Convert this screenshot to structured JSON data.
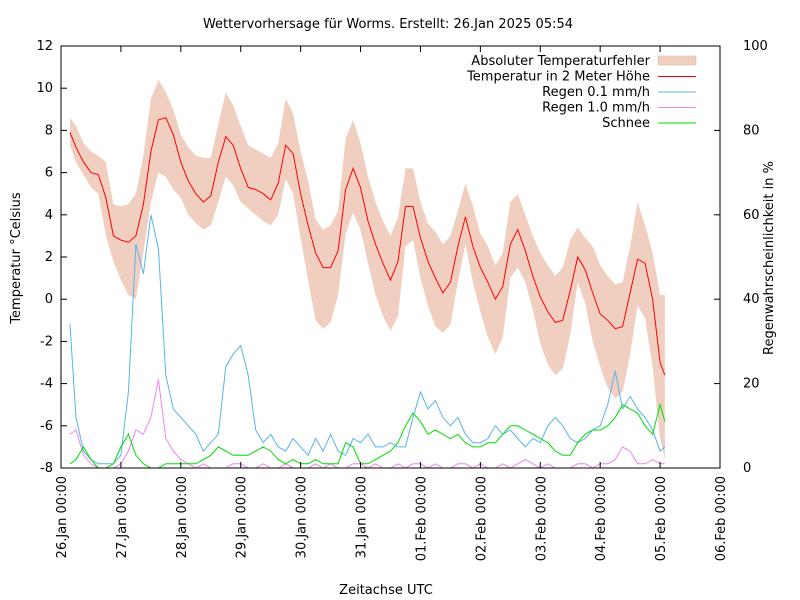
{
  "chart_data": {
    "type": "line",
    "title": "Wettervorhersage für Worms. Erstellt: 26.Jan 2025 05:54",
    "xlabel": "Zeitachse UTC",
    "ylabel": "Temperatur °Celsius",
    "y2label": "Regenwahrscheinlichkeit in %",
    "ylim": [
      -8,
      12
    ],
    "y2lim": [
      0,
      100
    ],
    "xlim_days": [
      0,
      11
    ],
    "y_ticks": [
      -8,
      -6,
      -4,
      -2,
      0,
      2,
      4,
      6,
      8,
      10,
      12
    ],
    "y2_ticks": [
      0,
      20,
      40,
      60,
      80,
      100
    ],
    "x_tick_labels": [
      "26.Jan 00:00",
      "27.Jan 00:00",
      "28.Jan 00:00",
      "29.Jan 00:00",
      "30.Jan 00:00",
      "31.Jan 00:00",
      "01.Feb 00:00",
      "02.Feb 00:00",
      "03.Feb 00:00",
      "04.Feb 00:00",
      "05.Feb 00:00",
      "06.Feb 00:00"
    ],
    "grid": false,
    "legend_position": "top-right",
    "x_unit": "days since 26.Jan 00:00 UTC",
    "x": [
      0.15,
      0.25,
      0.375,
      0.5,
      0.625,
      0.75,
      0.875,
      1.0,
      1.125,
      1.25,
      1.375,
      1.5,
      1.625,
      1.75,
      1.875,
      2.0,
      2.125,
      2.25,
      2.375,
      2.5,
      2.625,
      2.75,
      2.875,
      3.0,
      3.125,
      3.25,
      3.375,
      3.5,
      3.625,
      3.75,
      3.875,
      4.0,
      4.125,
      4.25,
      4.375,
      4.5,
      4.625,
      4.75,
      4.875,
      5.0,
      5.125,
      5.25,
      5.375,
      5.5,
      5.625,
      5.75,
      5.875,
      6.0,
      6.125,
      6.25,
      6.375,
      6.5,
      6.625,
      6.75,
      6.875,
      7.0,
      7.125,
      7.25,
      7.375,
      7.5,
      7.625,
      7.75,
      7.875,
      8.0,
      8.125,
      8.25,
      8.375,
      8.5,
      8.625,
      8.75,
      8.875,
      9.0,
      9.125,
      9.25,
      9.375,
      9.5,
      9.625,
      9.75,
      9.875,
      10.0,
      10.08
    ],
    "series": [
      {
        "name": "Temperatur in 2 Meter Höhe",
        "axis": "y",
        "color": "#ff0000",
        "values": [
          7.9,
          7.2,
          6.5,
          6.0,
          5.9,
          4.8,
          3.0,
          2.8,
          2.7,
          3.0,
          4.5,
          7.0,
          8.5,
          8.6,
          7.8,
          6.5,
          5.6,
          5.0,
          4.6,
          4.9,
          6.5,
          7.7,
          7.3,
          6.2,
          5.3,
          5.2,
          5.0,
          4.7,
          5.5,
          7.3,
          6.9,
          5.0,
          3.5,
          2.2,
          1.5,
          1.5,
          2.3,
          5.2,
          6.2,
          5.3,
          3.7,
          2.6,
          1.7,
          0.9,
          1.8,
          4.4,
          4.4,
          2.9,
          1.8,
          1.0,
          0.3,
          0.8,
          2.5,
          3.9,
          2.5,
          1.5,
          0.8,
          0.0,
          0.6,
          2.6,
          3.3,
          2.3,
          1.1,
          0.1,
          -0.6,
          -1.1,
          -1.0,
          0.4,
          2.0,
          1.4,
          0.3,
          -0.7,
          -1.0,
          -1.4,
          -1.3,
          0.3,
          1.9,
          1.7,
          0.0,
          -3.0,
          -3.6
        ]
      },
      {
        "name": "Absoluter Temperaturfehler",
        "axis": "y",
        "color": "#f0cfc0",
        "type": "area",
        "upper": [
          8.6,
          8.2,
          7.4,
          7.0,
          6.8,
          6.5,
          4.5,
          4.4,
          4.5,
          5.0,
          6.8,
          9.5,
          10.4,
          9.8,
          9.0,
          7.8,
          7.2,
          6.8,
          6.7,
          6.7,
          8.3,
          9.8,
          9.2,
          8.2,
          7.3,
          7.1,
          6.9,
          6.7,
          7.4,
          9.5,
          8.8,
          7.0,
          5.6,
          3.8,
          3.3,
          3.5,
          4.2,
          7.6,
          8.5,
          7.4,
          5.8,
          4.6,
          3.7,
          3.0,
          3.9,
          6.2,
          6.2,
          4.6,
          3.6,
          3.2,
          2.6,
          3.0,
          4.2,
          5.5,
          4.4,
          3.1,
          2.5,
          1.6,
          2.2,
          4.6,
          5.0,
          4.0,
          3.0,
          2.2,
          1.6,
          1.1,
          1.5,
          2.8,
          3.4,
          2.9,
          2.5,
          1.6,
          1.1,
          0.7,
          0.8,
          2.5,
          4.6,
          3.5,
          2.2,
          0.2,
          0.2
        ],
        "lower": [
          7.3,
          6.5,
          5.9,
          5.3,
          5.0,
          3.0,
          1.8,
          0.9,
          0.2,
          0.0,
          2.2,
          4.6,
          6.0,
          5.8,
          5.2,
          4.8,
          4.0,
          3.6,
          3.3,
          3.5,
          4.6,
          5.8,
          5.4,
          4.6,
          4.3,
          4.0,
          3.7,
          3.5,
          4.0,
          5.7,
          5.0,
          2.9,
          0.9,
          -1.0,
          -1.4,
          -1.1,
          0.2,
          3.1,
          4.1,
          3.3,
          1.7,
          0.2,
          -0.8,
          -1.5,
          -0.8,
          2.5,
          2.8,
          1.0,
          -0.3,
          -1.3,
          -1.6,
          -1.2,
          0.8,
          2.6,
          0.8,
          -0.6,
          -1.8,
          -2.6,
          -1.8,
          1.0,
          1.5,
          0.8,
          -0.5,
          -2.1,
          -3.1,
          -3.6,
          -3.3,
          -1.7,
          0.8,
          -0.2,
          -2.0,
          -3.2,
          -4.2,
          -4.7,
          -4.4,
          -2.6,
          -0.3,
          -0.9,
          -3.2,
          -6.6,
          -7.6
        ]
      },
      {
        "name": "Regen 0.1 mm/h",
        "axis": "y2",
        "color": "#56b4e9",
        "values": [
          34,
          12,
          4,
          2,
          1,
          1,
          1,
          3,
          18,
          53,
          46,
          60,
          52,
          22,
          14,
          12,
          10,
          8,
          4,
          6,
          8,
          24,
          27,
          29,
          22,
          9,
          6,
          8,
          5,
          4,
          7,
          5,
          3,
          7,
          4,
          8,
          4,
          3,
          7,
          6,
          8,
          5,
          5,
          6,
          5,
          5,
          12,
          18,
          14,
          16,
          12,
          10,
          12,
          8,
          6,
          6,
          7,
          10,
          8,
          9,
          7,
          5,
          7,
          6,
          10,
          12,
          10,
          7,
          6,
          7,
          9,
          10,
          15,
          23,
          14,
          17,
          14,
          12,
          9,
          4,
          5
        ]
      },
      {
        "name": "Regen 1.0 mm/h",
        "axis": "y2",
        "color": "#ee82ee",
        "values": [
          8,
          9,
          3,
          1,
          0,
          0,
          0,
          1,
          4,
          9,
          8,
          12,
          21,
          7,
          4,
          2,
          1,
          0,
          1,
          0,
          0,
          0,
          1,
          1,
          0,
          0,
          1,
          0,
          0,
          1,
          0,
          0,
          0,
          1,
          0,
          1,
          0,
          0,
          1,
          1,
          0,
          1,
          0,
          0,
          1,
          0,
          1,
          1,
          0,
          1,
          0,
          0,
          1,
          1,
          0,
          1,
          0,
          0,
          1,
          0,
          1,
          2,
          1,
          0,
          1,
          0,
          0,
          0,
          1,
          1,
          0,
          1,
          1,
          2,
          5,
          4,
          1,
          1,
          2,
          1,
          1
        ]
      },
      {
        "name": "Schnee",
        "axis": "y2",
        "color": "#00dd00",
        "values": [
          1,
          2,
          5,
          2,
          0,
          0,
          1,
          5,
          8,
          3,
          1,
          0,
          0,
          1,
          1,
          1,
          1,
          1,
          2,
          3,
          5,
          4,
          3,
          3,
          3,
          4,
          5,
          4,
          2,
          1,
          2,
          1,
          1,
          2,
          1,
          1,
          1,
          6,
          5,
          1,
          1,
          2,
          3,
          4,
          6,
          10,
          13,
          11,
          8,
          9,
          8,
          7,
          8,
          6,
          5,
          5,
          6,
          6,
          8,
          10,
          10,
          9,
          8,
          7,
          6,
          4,
          3,
          3,
          6,
          8,
          9,
          9,
          10,
          12,
          15,
          14,
          13,
          10,
          8,
          15,
          11
        ]
      }
    ]
  }
}
